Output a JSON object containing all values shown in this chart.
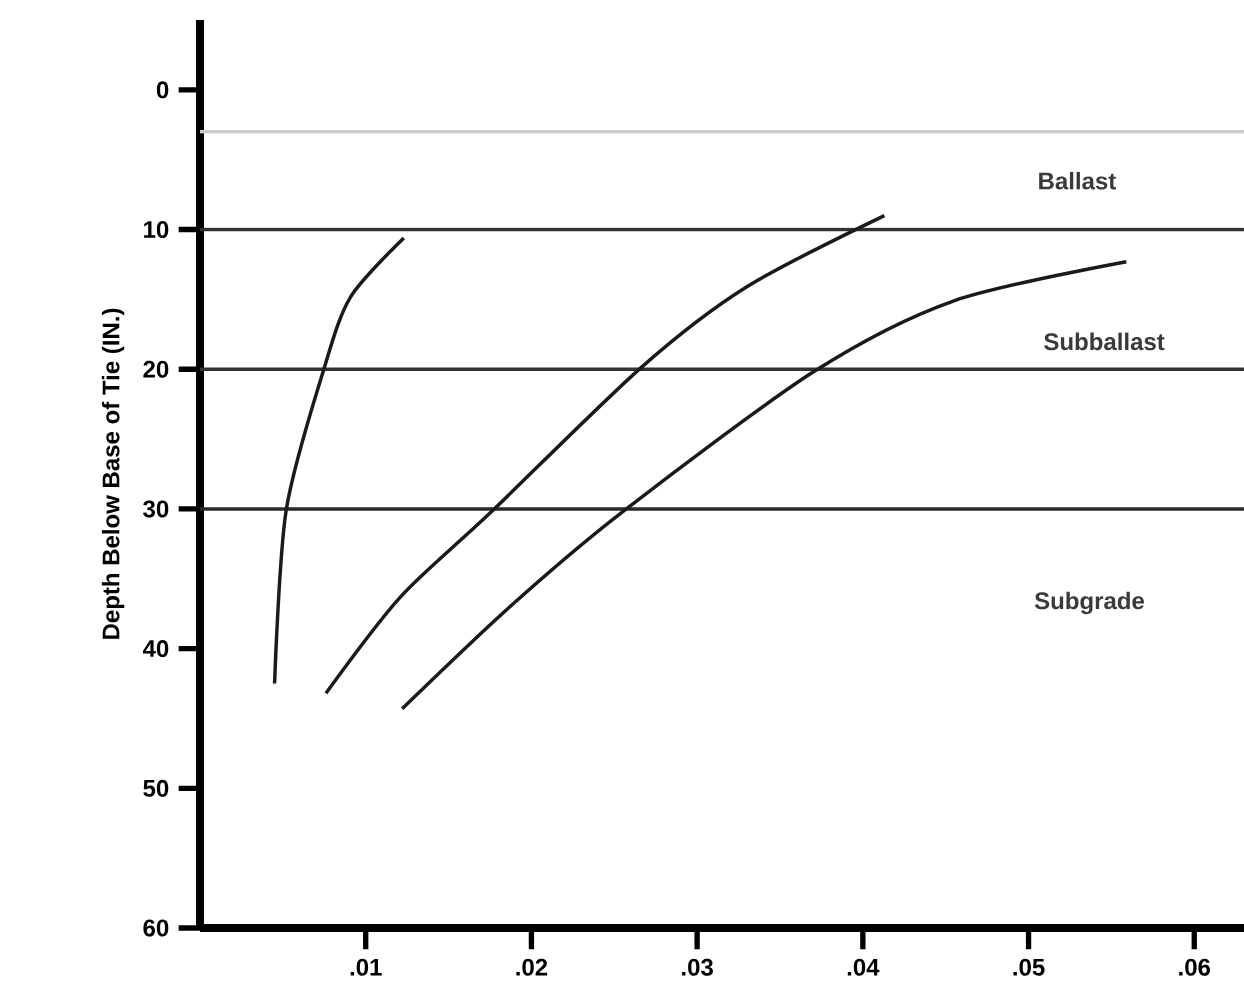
{
  "chart_data": {
    "type": "line",
    "ylabel": "Depth Below Base of Tie (IN.)",
    "xlim": [
      0,
      0.063
    ],
    "ylim": [
      60,
      -5
    ],
    "xticks": [
      {
        "value": 0.01,
        "label": ".01"
      },
      {
        "value": 0.02,
        "label": ".02"
      },
      {
        "value": 0.03,
        "label": ".03"
      },
      {
        "value": 0.04,
        "label": ".04"
      },
      {
        "value": 0.05,
        "label": ".05"
      },
      {
        "value": 0.06,
        "label": ".06"
      }
    ],
    "yticks": [
      0,
      10,
      20,
      30,
      40,
      50,
      60
    ],
    "series": [
      {
        "color": "#1a1a1a",
        "x": [
          0.0045,
          0.0052,
          0.0075,
          0.0091,
          0.0123
        ],
        "values": [
          42.5,
          30.1,
          19.9,
          14.8,
          10.6
        ]
      },
      {
        "color": "#1a1a1a",
        "x": [
          0.0076,
          0.0121,
          0.0175,
          0.0266,
          0.033,
          0.0413
        ],
        "values": [
          43.2,
          36.3,
          30.3,
          19.9,
          14.1,
          9.0
        ]
      },
      {
        "color": "#1a1a1a",
        "x": [
          0.0122,
          0.0187,
          0.0254,
          0.037,
          0.0455,
          0.0559
        ],
        "values": [
          44.3,
          37.0,
          30.3,
          20.2,
          15.1,
          12.3
        ]
      }
    ],
    "ref_lines": [
      {
        "axis": "y",
        "value": 3,
        "color": "#cccccc"
      },
      {
        "axis": "y",
        "value": 10,
        "color": "#3a3030"
      },
      {
        "axis": "y",
        "value": 20,
        "color": "#333333"
      },
      {
        "axis": "y",
        "value": 30,
        "color": "#2a2a2a"
      }
    ],
    "annotations": [
      "Ballast",
      "Subballast",
      "Subgrade"
    ],
    "grid": false,
    "marker": "none",
    "line_style": "solid"
  }
}
